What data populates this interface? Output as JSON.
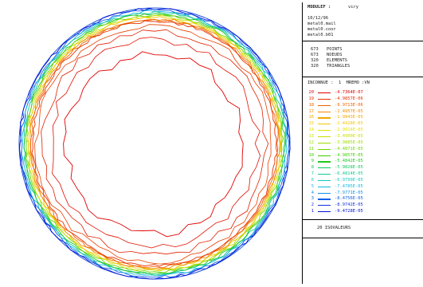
{
  "header": {
    "program": "MODULEF :",
    "user": "viry",
    "date": "10/12/96",
    "files": [
      "metal0.mail",
      "metal0.coor",
      "metal0.b01"
    ]
  },
  "stats": [
    {
      "count": "673",
      "label": "POINTS"
    },
    {
      "count": "673",
      "label": "NOEUDS"
    },
    {
      "count": "320",
      "label": "ELEMENTS"
    },
    {
      "count": "320",
      "label": "TRIANGLES"
    }
  ],
  "legend": {
    "title": "INCONNUE :  1  MREMO :VN",
    "entries": [
      {
        "index": "20",
        "value": "-4.7364E-07",
        "color": "#e00000"
      },
      {
        "index": "19",
        "value": "-4.9857E-06",
        "color": "#e83000"
      },
      {
        "index": "18",
        "value": "-9.9713E-06",
        "color": "#ee6000"
      },
      {
        "index": "17",
        "value": "-1.4957E-05",
        "color": "#f08a00"
      },
      {
        "index": "16",
        "value": "-1.9943E-05",
        "color": "#f0a800"
      },
      {
        "index": "15",
        "value": "-2.4428E-05",
        "color": "#f0c800"
      },
      {
        "index": "14",
        "value": "-2.9914E-05",
        "color": "#e8e000"
      },
      {
        "index": "13",
        "value": "-3.4900E-05",
        "color": "#c8e000"
      },
      {
        "index": "12",
        "value": "-3.9885E-05",
        "color": "#a0dc00"
      },
      {
        "index": "11",
        "value": "-4.4871E-05",
        "color": "#70d400"
      },
      {
        "index": "10",
        "value": "-4.9857E-05",
        "color": "#40cc00"
      },
      {
        "index": "9",
        "value": "-5.4842E-05",
        "color": "#20c820"
      },
      {
        "index": "8",
        "value": "-5.9828E-05",
        "color": "#10c860"
      },
      {
        "index": "7",
        "value": "-6.4814E-05",
        "color": "#10c890"
      },
      {
        "index": "6",
        "value": "-6.9799E-05",
        "color": "#10c8c0"
      },
      {
        "index": "5",
        "value": "-7.4785E-05",
        "color": "#10b8e0"
      },
      {
        "index": "4",
        "value": "-7.9771E-05",
        "color": "#1090e8"
      },
      {
        "index": "3",
        "value": "-8.4756E-05",
        "color": "#1060e8"
      },
      {
        "index": "2",
        "value": "-8.9742E-05",
        "color": "#1030e0"
      },
      {
        "index": "1",
        "value": "-9.4728E-05",
        "color": "#0010d0"
      }
    ]
  },
  "isovalues_label": "20 ISOVALEURS",
  "contour_colors": {
    "outer": [
      "#0010d0",
      "#1060e8",
      "#10b8e0",
      "#10c890",
      "#20c820",
      "#70d400",
      "#c8e000",
      "#f0c800",
      "#f08a00",
      "#ee6000",
      "#e83000"
    ],
    "inner": "#e00000"
  }
}
